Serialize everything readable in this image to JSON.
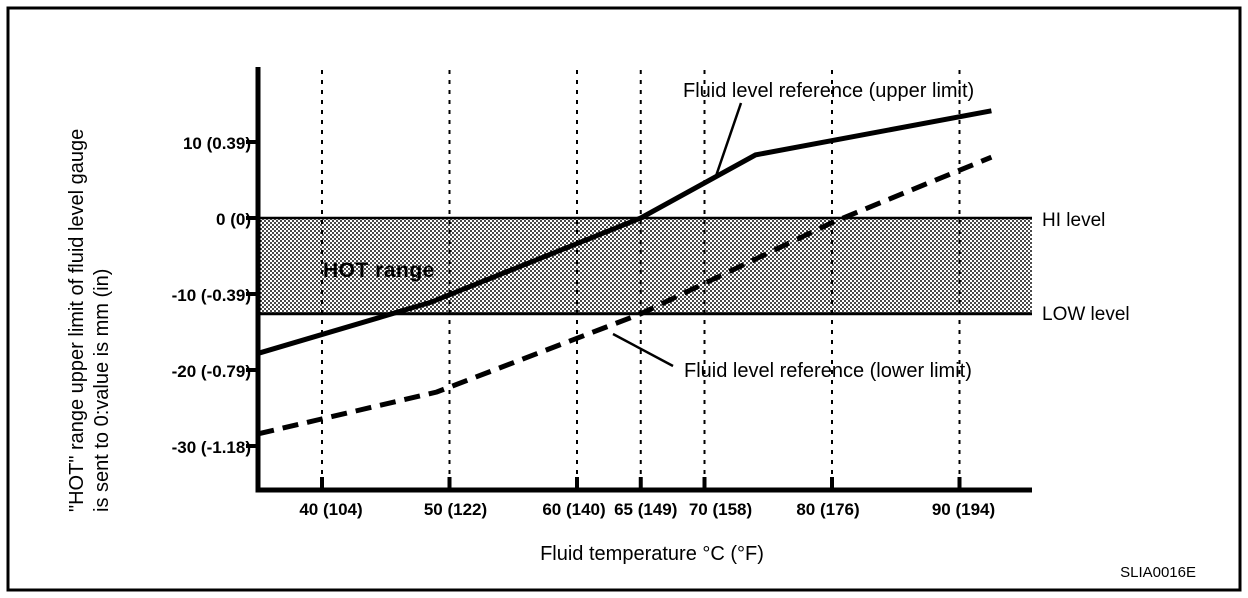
{
  "figure": {
    "code": "SLIA0016E"
  },
  "chart_data": {
    "type": "line",
    "title": "",
    "xlabel": "Fluid temperature °C (°F)",
    "ylabel_line1": "\"HOT\" range upper limit of fluid level gauge",
    "ylabel_line2": "is sent to 0:value is mm (in)",
    "grid": "vertical-dashed",
    "colors": {
      "ink": "#000000",
      "background": "#ffffff"
    },
    "x_axis": {
      "unit": "°C (°F)",
      "range_c": [
        35,
        95.5
      ],
      "ticks": [
        {
          "value": 40,
          "label": "40 (104)"
        },
        {
          "value": 50,
          "label": "50 (122)"
        },
        {
          "value": 60,
          "label": "60 (140)"
        },
        {
          "value": 65,
          "label": "65 (149)"
        },
        {
          "value": 70,
          "label": "70 (158)"
        },
        {
          "value": 80,
          "label": "80 (176)"
        },
        {
          "value": 90,
          "label": "90 (194)"
        }
      ]
    },
    "y_axis": {
      "unit": "mm (in)",
      "range_mm": [
        -33,
        20
      ],
      "ticks": [
        {
          "value": 10,
          "label": "10 (0.39)"
        },
        {
          "value": 0,
          "label": "0 (0)"
        },
        {
          "value": -10,
          "label": "-10 (-0.39)"
        },
        {
          "value": -20,
          "label": "-20 (-0.79)"
        },
        {
          "value": -30,
          "label": "-30 (-1.18)"
        }
      ]
    },
    "band": {
      "label": "HOT range",
      "top_mm": 0,
      "bottom_mm": -12.6,
      "top_label": "HI level",
      "bottom_label": "LOW level"
    },
    "series": [
      {
        "name": "Fluid level reference (upper limit)",
        "style": "solid",
        "points_c_mm": [
          [
            35,
            -17.8
          ],
          [
            48.5,
            -11.1
          ],
          [
            65,
            0
          ],
          [
            74,
            8.3
          ],
          [
            92.5,
            14.1
          ]
        ]
      },
      {
        "name": "Fluid level reference (lower limit)",
        "style": "dashed",
        "points_c_mm": [
          [
            35,
            -28.4
          ],
          [
            49,
            -22.9
          ],
          [
            65,
            -12.6
          ],
          [
            80,
            -0.6
          ],
          [
            92.5,
            8.0
          ]
        ]
      }
    ]
  }
}
